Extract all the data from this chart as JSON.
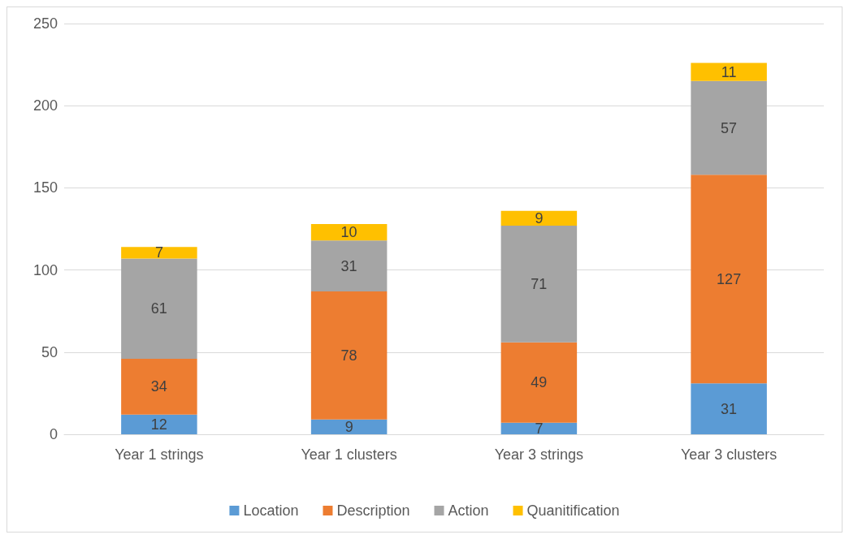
{
  "chart_data": {
    "type": "bar",
    "stacked": true,
    "data_labels": true,
    "grid": "y",
    "legend": "bottom",
    "categories": [
      "Year 1 strings",
      "Year 1 clusters",
      "Year 3 strings",
      "Year 3 clusters"
    ],
    "ylim": [
      0,
      250
    ],
    "yticks": [
      0,
      50,
      100,
      150,
      200,
      250
    ],
    "series": [
      {
        "name": "Location",
        "color": "#5b9bd5",
        "values": [
          12,
          9,
          7,
          31
        ]
      },
      {
        "name": "Description",
        "color": "#ed7d31",
        "values": [
          34,
          78,
          49,
          127
        ]
      },
      {
        "name": "Action",
        "color": "#a5a5a5",
        "values": [
          61,
          31,
          71,
          57
        ]
      },
      {
        "name": "Quanitification",
        "color": "#ffc000",
        "values": [
          7,
          10,
          9,
          11
        ]
      }
    ]
  }
}
